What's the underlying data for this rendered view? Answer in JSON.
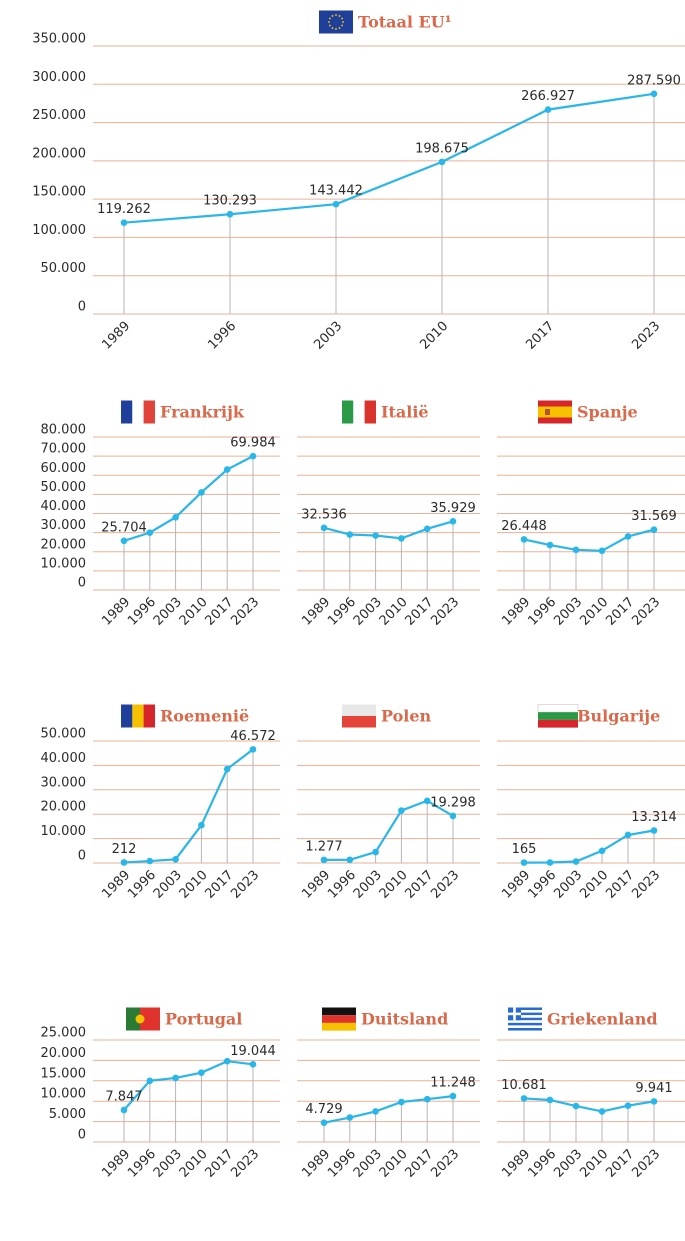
{
  "chart_data": [
    {
      "type": "line",
      "title": "Totaal EU¹",
      "categories": [
        "1989",
        "1996",
        "2003",
        "2010",
        "2017",
        "2023"
      ],
      "values": [
        119262,
        130293,
        143442,
        198675,
        266927,
        287590
      ],
      "value_labels": [
        "119.262",
        "130.293",
        "143.442",
        "198.675",
        "266.927",
        "287.590"
      ],
      "color": "#29b6e8",
      "ylim": [
        0,
        350000
      ],
      "yticks": [
        0,
        {
          "value": 50000,
          "label": "50.000"
        },
        {
          "value": 100000,
          "label": "100.000"
        },
        {
          "value": 150000,
          "label": "150.000"
        },
        {
          "value": 200000,
          "label": "200.000"
        },
        {
          "value": 250000,
          "label": "250.000"
        },
        {
          "value": 300000,
          "label": "300.000"
        },
        {
          "value": 350000,
          "label": "350.000"
        }
      ],
      "grid": true
    },
    {
      "type": "line",
      "title": "Frankrijk",
      "categories": [
        "1989",
        "1996",
        "2003",
        "2010",
        "2017",
        "2023"
      ],
      "values": [
        25704,
        30000,
        38000,
        51000,
        63000,
        69984
      ],
      "value_labels": [
        "25.704",
        null,
        null,
        null,
        null,
        "69.984"
      ],
      "color": "#29b6e8",
      "ylim": [
        0,
        80000
      ],
      "yticks": [
        0,
        {
          "value": 10000,
          "label": "10.000"
        },
        {
          "value": 20000,
          "label": "20.000"
        },
        {
          "value": 30000,
          "label": "30.000"
        },
        {
          "value": 40000,
          "label": "40.000"
        },
        {
          "value": 50000,
          "label": "50.000"
        },
        {
          "value": 60000,
          "label": "60.000"
        },
        {
          "value": 70000,
          "label": "70.000"
        },
        {
          "value": 80000,
          "label": "80.000"
        }
      ],
      "grid": true
    },
    {
      "type": "line",
      "title": "Italië",
      "categories": [
        "1989",
        "1996",
        "2003",
        "2010",
        "2017",
        "2023"
      ],
      "values": [
        32536,
        29000,
        28500,
        27000,
        32000,
        35929
      ],
      "value_labels": [
        "32.536",
        null,
        null,
        null,
        null,
        "35.929"
      ],
      "color": "#29b6e8",
      "ylim": [
        0,
        80000
      ],
      "yticks": [
        0,
        10000,
        20000,
        30000,
        40000,
        50000,
        60000,
        70000,
        80000
      ],
      "grid": true
    },
    {
      "type": "line",
      "title": "Spanje",
      "categories": [
        "1989",
        "1996",
        "2003",
        "2010",
        "2017",
        "2023"
      ],
      "values": [
        26448,
        23500,
        21000,
        20500,
        28000,
        31569
      ],
      "value_labels": [
        "26.448",
        null,
        null,
        null,
        null,
        "31.569"
      ],
      "color": "#29b6e8",
      "ylim": [
        0,
        80000
      ],
      "yticks": [
        0,
        10000,
        20000,
        30000,
        40000,
        50000,
        60000,
        70000,
        80000
      ],
      "grid": true
    },
    {
      "type": "line",
      "title": "Roemenië",
      "categories": [
        "1989",
        "1996",
        "2003",
        "2010",
        "2017",
        "2023"
      ],
      "values": [
        212,
        800,
        1500,
        15500,
        38500,
        46572
      ],
      "value_labels": [
        "212",
        null,
        null,
        null,
        null,
        "46.572"
      ],
      "color": "#29b6e8",
      "ylim": [
        0,
        50000
      ],
      "yticks": [
        0,
        {
          "value": 10000,
          "label": "10.000"
        },
        {
          "value": 20000,
          "label": "20.000"
        },
        {
          "value": 30000,
          "label": "30.000"
        },
        {
          "value": 40000,
          "label": "40.000"
        },
        {
          "value": 50000,
          "label": "50.000"
        }
      ],
      "grid": true
    },
    {
      "type": "line",
      "title": "Polen",
      "categories": [
        "1989",
        "1996",
        "2003",
        "2010",
        "2017",
        "2023"
      ],
      "values": [
        1277,
        1300,
        4500,
        21500,
        25500,
        19298
      ],
      "value_labels": [
        "1.277",
        null,
        null,
        null,
        null,
        "19.298"
      ],
      "color": "#29b6e8",
      "ylim": [
        0,
        50000
      ],
      "yticks": [
        0,
        10000,
        20000,
        30000,
        40000,
        50000
      ],
      "grid": true
    },
    {
      "type": "line",
      "title": "Bulgarije",
      "categories": [
        "1989",
        "1996",
        "2003",
        "2010",
        "2017",
        "2023"
      ],
      "values": [
        165,
        200,
        600,
        5000,
        11500,
        13314
      ],
      "value_labels": [
        "165",
        null,
        null,
        null,
        null,
        "13.314"
      ],
      "color": "#29b6e8",
      "ylim": [
        0,
        50000
      ],
      "yticks": [
        0,
        10000,
        20000,
        30000,
        40000,
        50000
      ],
      "grid": true
    },
    {
      "type": "line",
      "title": "Portugal",
      "categories": [
        "1989",
        "1996",
        "2003",
        "2010",
        "2017",
        "2023"
      ],
      "values": [
        7847,
        15000,
        15700,
        17000,
        19800,
        19044
      ],
      "value_labels": [
        "7.847",
        null,
        null,
        null,
        null,
        "19.044"
      ],
      "color": "#29b6e8",
      "ylim": [
        0,
        25000
      ],
      "yticks": [
        0,
        {
          "value": 5000,
          "label": "5.000"
        },
        {
          "value": 10000,
          "label": "10.000"
        },
        {
          "value": 15000,
          "label": "15.000"
        },
        {
          "value": 20000,
          "label": "20.000"
        },
        {
          "value": 25000,
          "label": "25.000"
        }
      ],
      "grid": true
    },
    {
      "type": "line",
      "title": "Duitsland",
      "categories": [
        "1989",
        "1996",
        "2003",
        "2010",
        "2017",
        "2023"
      ],
      "values": [
        4729,
        6000,
        7500,
        9800,
        10500,
        11248
      ],
      "value_labels": [
        "4.729",
        null,
        null,
        null,
        null,
        "11.248"
      ],
      "color": "#29b6e8",
      "ylim": [
        0,
        25000
      ],
      "yticks": [
        0,
        5000,
        10000,
        15000,
        20000,
        25000
      ],
      "grid": true
    },
    {
      "type": "line",
      "title": "Griekenland",
      "categories": [
        "1989",
        "1996",
        "2003",
        "2010",
        "2017",
        "2023"
      ],
      "values": [
        10681,
        10300,
        8800,
        7500,
        8900,
        9941
      ],
      "value_labels": [
        "10.681",
        null,
        null,
        null,
        null,
        "9.941"
      ],
      "color": "#29b6e8",
      "ylim": [
        0,
        25000
      ],
      "yticks": [
        0,
        5000,
        10000,
        15000,
        20000,
        25000
      ],
      "grid": true
    }
  ]
}
